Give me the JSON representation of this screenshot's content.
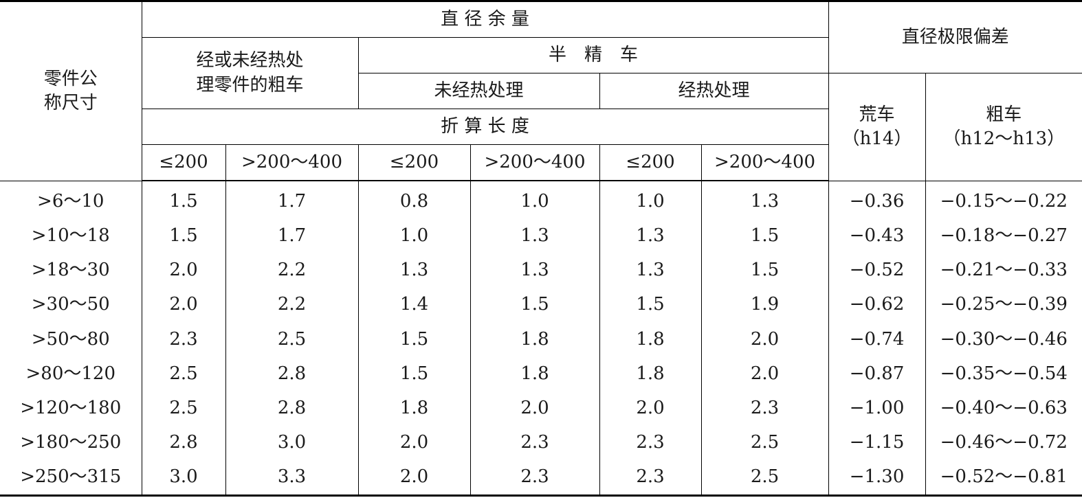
{
  "header": {
    "size_col": [
      "零件公",
      "称尺寸"
    ],
    "dia_allowance": "直 径 余 量",
    "dia_limit_dev": "直径极限偏差",
    "rough_turn": [
      "经或未经热处",
      "理零件的粗车"
    ],
    "semi_finish": "半　精　车",
    "not_heat_treated": "未经热处理",
    "heat_treated": "经热处理",
    "conv_length": "折 算 长 度",
    "barren_turn": [
      "荒车",
      "（h14）"
    ],
    "rough": [
      "粗车",
      "（h12～h13）"
    ],
    "len_le200": "≤200",
    "len_200_400": ">200～400"
  },
  "rows": [
    [
      ">6～10",
      "1.5",
      "1.7",
      "0.8",
      "1.0",
      "1.0",
      "1.3",
      "−0.36",
      "−0.15～−0.22"
    ],
    [
      ">10～18",
      "1.5",
      "1.7",
      "1.0",
      "1.3",
      "1.3",
      "1.5",
      "−0.43",
      "−0.18～−0.27"
    ],
    [
      ">18～30",
      "2.0",
      "2.2",
      "1.3",
      "1.3",
      "1.3",
      "1.5",
      "−0.52",
      "−0.21～−0.33"
    ],
    [
      ">30～50",
      "2.0",
      "2.2",
      "1.4",
      "1.5",
      "1.5",
      "1.9",
      "−0.62",
      "−0.25～−0.39"
    ],
    [
      ">50～80",
      "2.3",
      "2.5",
      "1.5",
      "1.8",
      "1.8",
      "2.0",
      "−0.74",
      "−0.30～−0.46"
    ],
    [
      ">80～120",
      "2.5",
      "2.8",
      "1.5",
      "1.8",
      "1.8",
      "2.0",
      "−0.87",
      "−0.35～−0.54"
    ],
    [
      ">120～180",
      "2.5",
      "2.8",
      "1.8",
      "2.0",
      "2.0",
      "2.3",
      "−1.00",
      "−0.40～−0.63"
    ],
    [
      ">180～250",
      "2.8",
      "3.0",
      "2.0",
      "2.3",
      "2.3",
      "2.5",
      "−1.15",
      "−0.46～−0.72"
    ],
    [
      ">250～315",
      "3.0",
      "3.3",
      "2.0",
      "2.3",
      "2.3",
      "2.5",
      "−1.30",
      "−0.52～−0.81"
    ]
  ]
}
